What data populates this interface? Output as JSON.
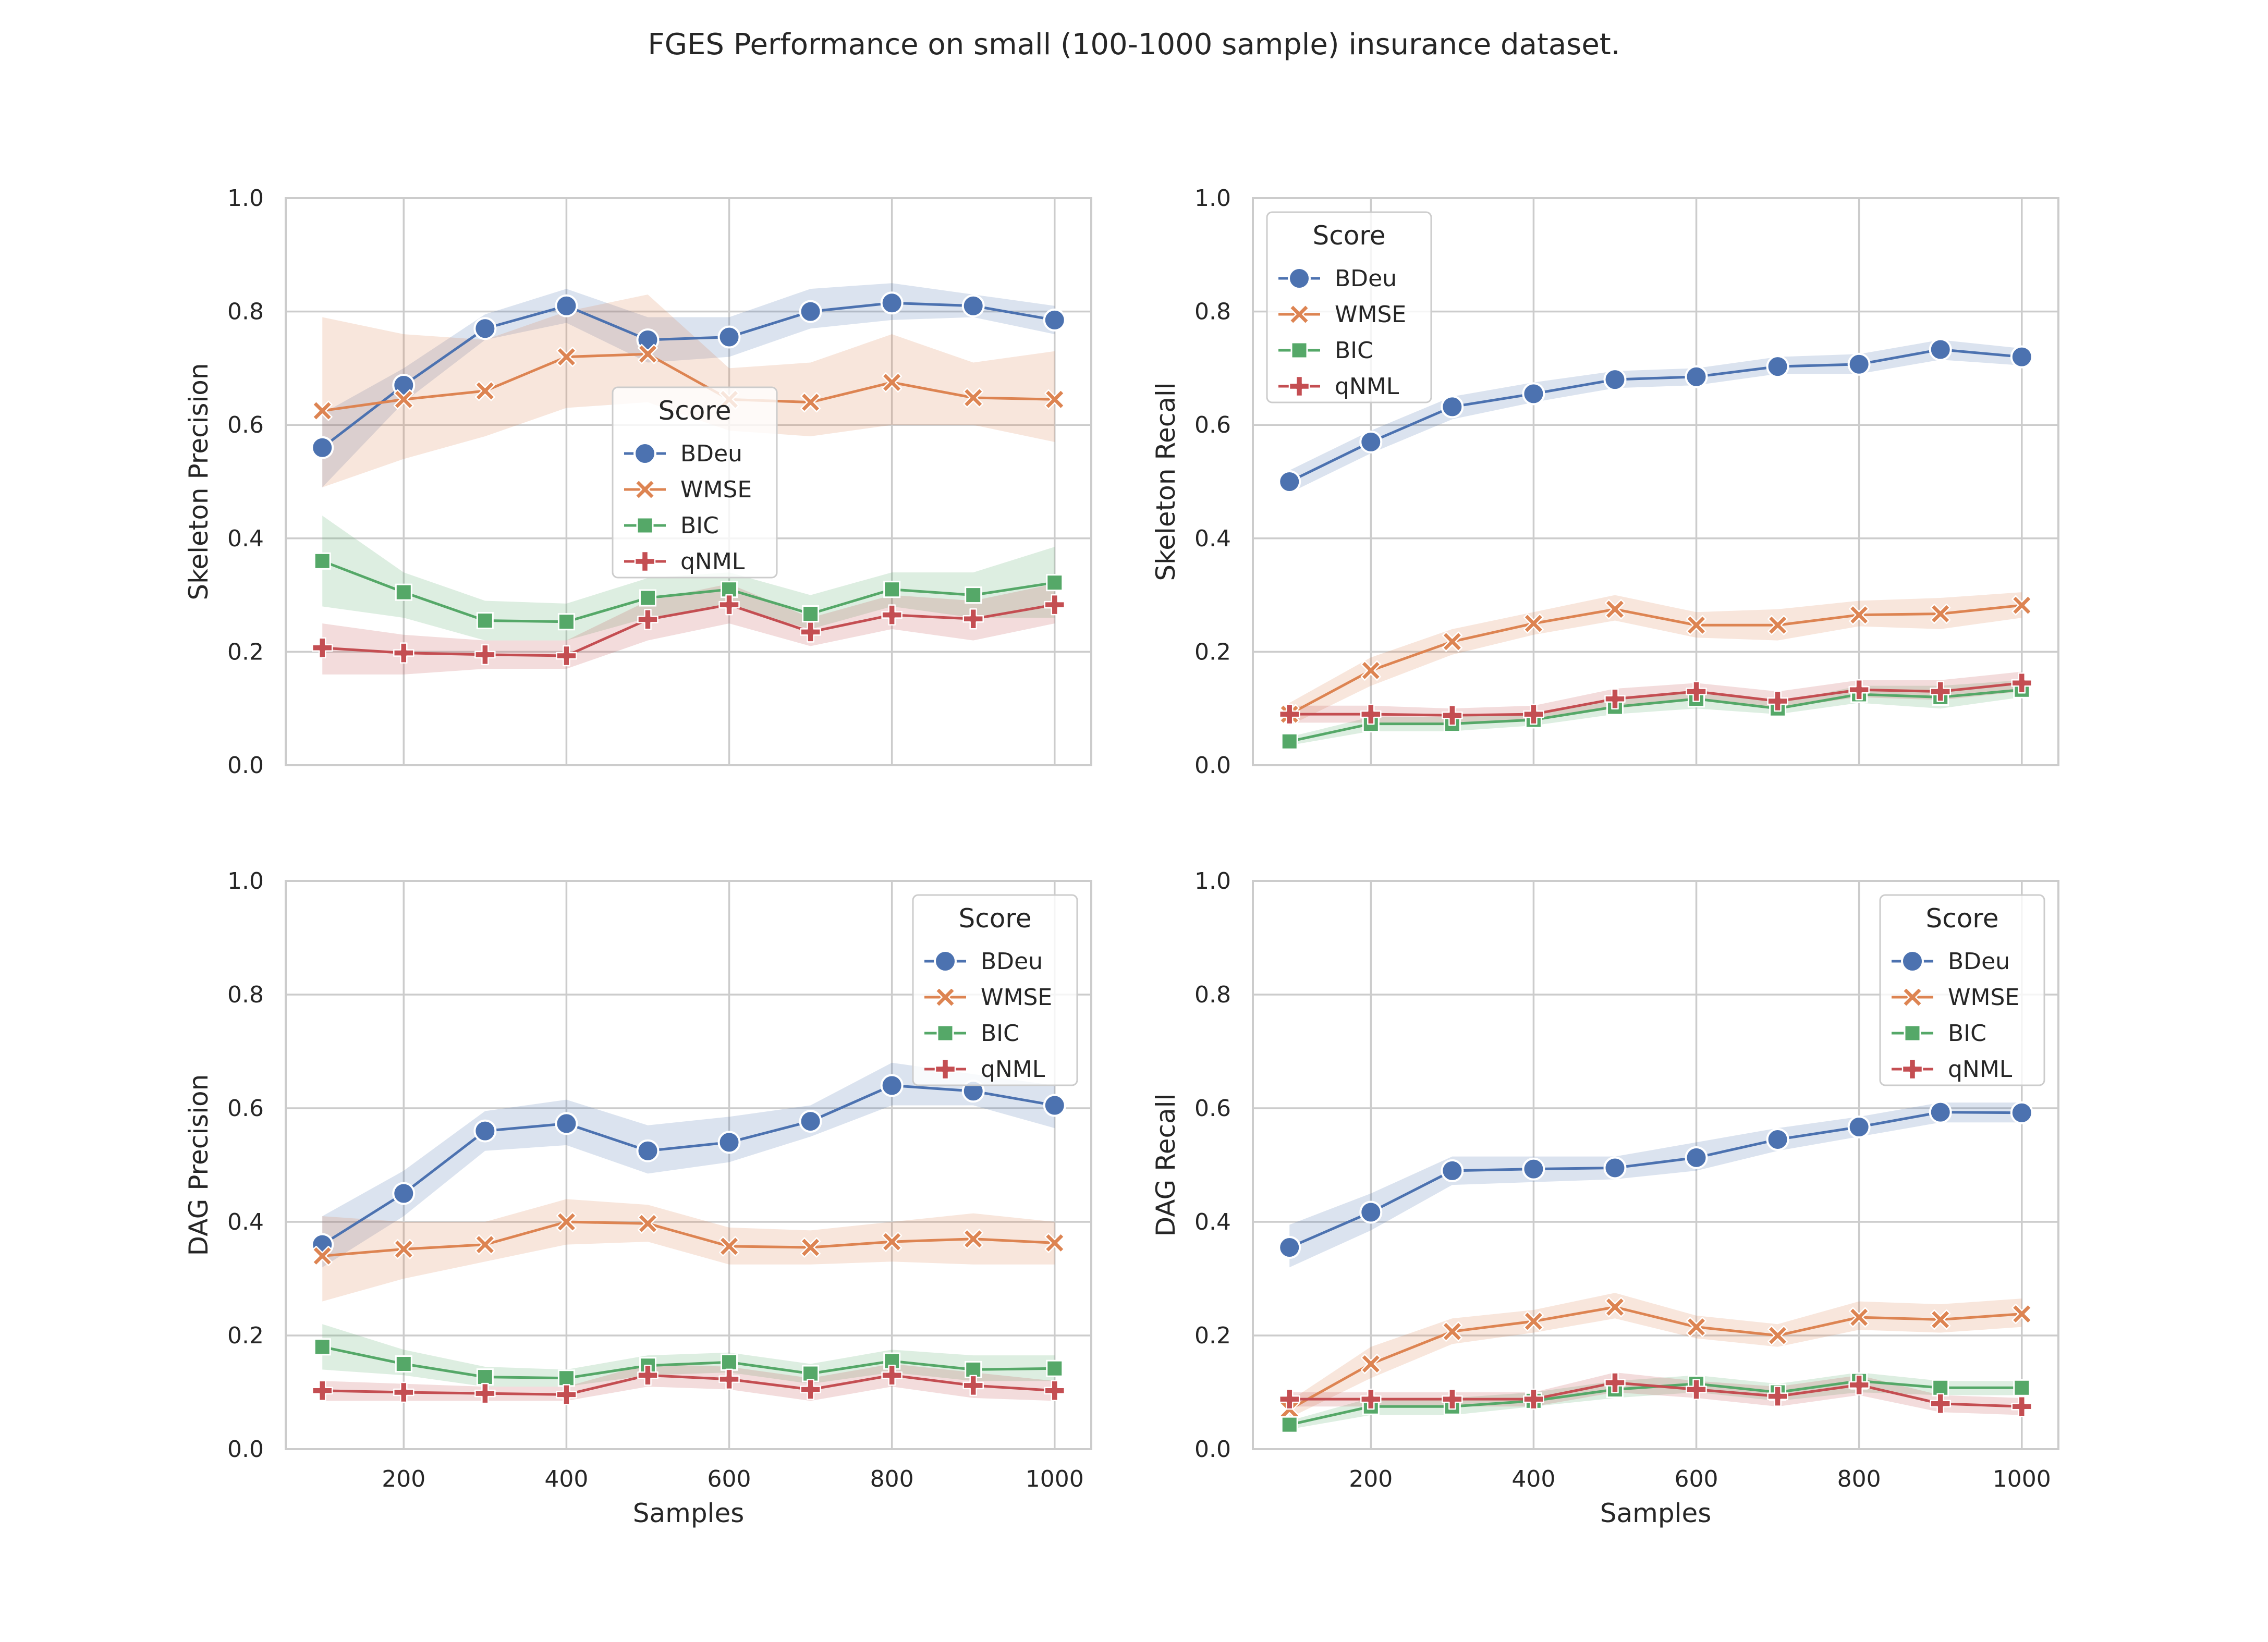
{
  "title": "FGES Performance on small (100-1000 sample) insurance dataset.",
  "colors": {
    "BDeu": "#4c72b0",
    "WMSE": "#dd8452",
    "BIC": "#55a868",
    "qNML": "#c44e52",
    "grid": "#cccccc",
    "spine": "#cccccc",
    "text": "#262626"
  },
  "markers": {
    "BDeu": "circle",
    "WMSE": "x",
    "BIC": "square",
    "qNML": "plus"
  },
  "chart_data": [
    {
      "type": "line",
      "position": "top-left",
      "xlabel": "",
      "ylabel": "Skeleton Precision",
      "xlim": [
        55,
        1045
      ],
      "ylim": [
        0,
        1
      ],
      "xticks": [
        200,
        400,
        600,
        800,
        1000
      ],
      "yticks": [
        0.0,
        0.2,
        0.4,
        0.6,
        0.8,
        1.0
      ],
      "show_xtick_labels": false,
      "grid": true,
      "legend": {
        "title": "Score",
        "placement": "center",
        "entries": [
          "BDeu",
          "WMSE",
          "BIC",
          "qNML"
        ]
      },
      "x": [
        100,
        200,
        300,
        400,
        500,
        600,
        700,
        800,
        900,
        1000
      ],
      "series": [
        {
          "name": "BDeu",
          "values": [
            0.56,
            0.67,
            0.77,
            0.81,
            0.75,
            0.755,
            0.8,
            0.815,
            0.81,
            0.785
          ],
          "lower": [
            0.49,
            0.64,
            0.75,
            0.78,
            0.71,
            0.72,
            0.77,
            0.785,
            0.79,
            0.76
          ],
          "upper": [
            0.62,
            0.7,
            0.795,
            0.84,
            0.79,
            0.79,
            0.84,
            0.85,
            0.83,
            0.81
          ]
        },
        {
          "name": "WMSE",
          "values": [
            0.625,
            0.645,
            0.66,
            0.72,
            0.725,
            0.645,
            0.64,
            0.675,
            0.648,
            0.645
          ],
          "lower": [
            0.49,
            0.54,
            0.58,
            0.63,
            0.64,
            0.59,
            0.58,
            0.6,
            0.6,
            0.57
          ],
          "upper": [
            0.79,
            0.76,
            0.75,
            0.8,
            0.83,
            0.7,
            0.71,
            0.76,
            0.71,
            0.73
          ]
        },
        {
          "name": "BIC",
          "values": [
            0.36,
            0.305,
            0.255,
            0.253,
            0.295,
            0.31,
            0.267,
            0.31,
            0.3,
            0.322
          ],
          "lower": [
            0.28,
            0.26,
            0.22,
            0.22,
            0.26,
            0.28,
            0.24,
            0.28,
            0.26,
            0.26
          ],
          "upper": [
            0.44,
            0.34,
            0.29,
            0.285,
            0.33,
            0.34,
            0.3,
            0.34,
            0.34,
            0.385
          ]
        },
        {
          "name": "qNML",
          "values": [
            0.207,
            0.198,
            0.195,
            0.193,
            0.257,
            0.283,
            0.235,
            0.265,
            0.258,
            0.283
          ],
          "lower": [
            0.16,
            0.16,
            0.17,
            0.17,
            0.22,
            0.25,
            0.21,
            0.24,
            0.22,
            0.25
          ],
          "upper": [
            0.25,
            0.23,
            0.22,
            0.22,
            0.29,
            0.32,
            0.26,
            0.3,
            0.29,
            0.32
          ]
        }
      ]
    },
    {
      "type": "line",
      "position": "top-right",
      "xlabel": "",
      "ylabel": "Skeleton Recall",
      "xlim": [
        55,
        1045
      ],
      "ylim": [
        0,
        1
      ],
      "xticks": [
        200,
        400,
        600,
        800,
        1000
      ],
      "yticks": [
        0.0,
        0.2,
        0.4,
        0.6,
        0.8,
        1.0
      ],
      "show_xtick_labels": false,
      "grid": true,
      "legend": {
        "title": "Score",
        "placement": "upper-left",
        "entries": [
          "BDeu",
          "WMSE",
          "BIC",
          "qNML"
        ]
      },
      "x": [
        100,
        200,
        300,
        400,
        500,
        600,
        700,
        800,
        900,
        1000
      ],
      "series": [
        {
          "name": "BDeu",
          "values": [
            0.5,
            0.57,
            0.632,
            0.655,
            0.68,
            0.685,
            0.703,
            0.707,
            0.733,
            0.72
          ],
          "lower": [
            0.48,
            0.55,
            0.61,
            0.64,
            0.665,
            0.67,
            0.69,
            0.69,
            0.715,
            0.705
          ],
          "upper": [
            0.52,
            0.59,
            0.65,
            0.675,
            0.695,
            0.7,
            0.72,
            0.725,
            0.75,
            0.735
          ]
        },
        {
          "name": "WMSE",
          "values": [
            0.09,
            0.167,
            0.218,
            0.25,
            0.275,
            0.247,
            0.247,
            0.265,
            0.267,
            0.282
          ],
          "lower": [
            0.07,
            0.14,
            0.195,
            0.23,
            0.255,
            0.225,
            0.22,
            0.245,
            0.24,
            0.26
          ],
          "upper": [
            0.11,
            0.19,
            0.24,
            0.27,
            0.3,
            0.27,
            0.275,
            0.29,
            0.295,
            0.305
          ]
        },
        {
          "name": "BIC",
          "values": [
            0.042,
            0.073,
            0.073,
            0.08,
            0.103,
            0.117,
            0.1,
            0.125,
            0.12,
            0.133
          ],
          "lower": [
            0.035,
            0.06,
            0.06,
            0.07,
            0.09,
            0.1,
            0.09,
            0.11,
            0.1,
            0.12
          ],
          "upper": [
            0.05,
            0.085,
            0.085,
            0.09,
            0.115,
            0.13,
            0.11,
            0.14,
            0.14,
            0.15
          ]
        },
        {
          "name": "qNML",
          "values": [
            0.09,
            0.09,
            0.088,
            0.09,
            0.117,
            0.13,
            0.113,
            0.133,
            0.13,
            0.145
          ],
          "lower": [
            0.075,
            0.075,
            0.075,
            0.08,
            0.1,
            0.115,
            0.1,
            0.12,
            0.115,
            0.13
          ],
          "upper": [
            0.105,
            0.105,
            0.1,
            0.105,
            0.135,
            0.145,
            0.13,
            0.15,
            0.15,
            0.165
          ]
        }
      ]
    },
    {
      "type": "line",
      "position": "bottom-left",
      "xlabel": "Samples",
      "ylabel": "DAG Precision",
      "xlim": [
        55,
        1045
      ],
      "ylim": [
        0,
        1
      ],
      "xticks": [
        200,
        400,
        600,
        800,
        1000
      ],
      "yticks": [
        0.0,
        0.2,
        0.4,
        0.6,
        0.8,
        1.0
      ],
      "show_xtick_labels": true,
      "grid": true,
      "legend": {
        "title": "Score",
        "placement": "upper-right",
        "entries": [
          "BDeu",
          "WMSE",
          "BIC",
          "qNML"
        ]
      },
      "x": [
        100,
        200,
        300,
        400,
        500,
        600,
        700,
        800,
        900,
        1000
      ],
      "series": [
        {
          "name": "BDeu",
          "values": [
            0.36,
            0.45,
            0.56,
            0.573,
            0.525,
            0.54,
            0.577,
            0.64,
            0.63,
            0.605
          ],
          "lower": [
            0.32,
            0.41,
            0.525,
            0.535,
            0.485,
            0.505,
            0.55,
            0.605,
            0.605,
            0.565
          ],
          "upper": [
            0.41,
            0.49,
            0.595,
            0.615,
            0.57,
            0.585,
            0.605,
            0.68,
            0.66,
            0.64
          ]
        },
        {
          "name": "WMSE",
          "values": [
            0.34,
            0.352,
            0.36,
            0.4,
            0.397,
            0.357,
            0.355,
            0.365,
            0.37,
            0.363
          ],
          "lower": [
            0.26,
            0.3,
            0.33,
            0.36,
            0.365,
            0.325,
            0.325,
            0.33,
            0.325,
            0.325
          ],
          "upper": [
            0.41,
            0.4,
            0.4,
            0.44,
            0.43,
            0.39,
            0.385,
            0.4,
            0.415,
            0.4
          ]
        },
        {
          "name": "BIC",
          "values": [
            0.18,
            0.15,
            0.127,
            0.125,
            0.147,
            0.153,
            0.133,
            0.155,
            0.14,
            0.142
          ],
          "lower": [
            0.14,
            0.13,
            0.11,
            0.11,
            0.13,
            0.135,
            0.115,
            0.135,
            0.12,
            0.12
          ],
          "upper": [
            0.22,
            0.175,
            0.145,
            0.14,
            0.165,
            0.17,
            0.15,
            0.175,
            0.165,
            0.165
          ]
        },
        {
          "name": "qNML",
          "values": [
            0.103,
            0.1,
            0.098,
            0.096,
            0.13,
            0.123,
            0.105,
            0.13,
            0.112,
            0.103
          ],
          "lower": [
            0.085,
            0.085,
            0.085,
            0.085,
            0.11,
            0.105,
            0.085,
            0.11,
            0.09,
            0.085
          ],
          "upper": [
            0.12,
            0.115,
            0.11,
            0.11,
            0.15,
            0.145,
            0.125,
            0.15,
            0.135,
            0.12
          ]
        }
      ]
    },
    {
      "type": "line",
      "position": "bottom-right",
      "xlabel": "Samples",
      "ylabel": "DAG Recall",
      "xlim": [
        55,
        1045
      ],
      "ylim": [
        0,
        1
      ],
      "xticks": [
        200,
        400,
        600,
        800,
        1000
      ],
      "yticks": [
        0.0,
        0.2,
        0.4,
        0.6,
        0.8,
        1.0
      ],
      "show_xtick_labels": true,
      "grid": true,
      "legend": {
        "title": "Score",
        "placement": "upper-right",
        "entries": [
          "BDeu",
          "WMSE",
          "BIC",
          "qNML"
        ]
      },
      "x": [
        100,
        200,
        300,
        400,
        500,
        600,
        700,
        800,
        900,
        1000
      ],
      "series": [
        {
          "name": "BDeu",
          "values": [
            0.355,
            0.417,
            0.49,
            0.493,
            0.495,
            0.513,
            0.545,
            0.567,
            0.593,
            0.592
          ],
          "lower": [
            0.32,
            0.385,
            0.465,
            0.47,
            0.475,
            0.49,
            0.525,
            0.55,
            0.575,
            0.575
          ],
          "upper": [
            0.395,
            0.45,
            0.515,
            0.515,
            0.515,
            0.54,
            0.565,
            0.585,
            0.61,
            0.61
          ]
        },
        {
          "name": "WMSE",
          "values": [
            0.07,
            0.15,
            0.207,
            0.225,
            0.25,
            0.215,
            0.2,
            0.232,
            0.228,
            0.238
          ],
          "lower": [
            0.055,
            0.125,
            0.185,
            0.205,
            0.23,
            0.195,
            0.18,
            0.21,
            0.205,
            0.215
          ],
          "upper": [
            0.085,
            0.18,
            0.23,
            0.245,
            0.275,
            0.235,
            0.22,
            0.26,
            0.255,
            0.265
          ]
        },
        {
          "name": "BIC",
          "values": [
            0.043,
            0.075,
            0.075,
            0.085,
            0.105,
            0.115,
            0.1,
            0.12,
            0.108,
            0.108
          ],
          "lower": [
            0.035,
            0.06,
            0.06,
            0.075,
            0.09,
            0.1,
            0.085,
            0.1,
            0.095,
            0.095
          ],
          "upper": [
            0.05,
            0.09,
            0.09,
            0.1,
            0.12,
            0.13,
            0.115,
            0.135,
            0.12,
            0.12
          ]
        },
        {
          "name": "qNML",
          "values": [
            0.088,
            0.088,
            0.088,
            0.088,
            0.117,
            0.105,
            0.093,
            0.113,
            0.08,
            0.075
          ],
          "lower": [
            0.075,
            0.075,
            0.075,
            0.075,
            0.1,
            0.09,
            0.075,
            0.095,
            0.065,
            0.06
          ],
          "upper": [
            0.1,
            0.1,
            0.1,
            0.1,
            0.135,
            0.12,
            0.11,
            0.13,
            0.095,
            0.09
          ]
        }
      ]
    }
  ]
}
